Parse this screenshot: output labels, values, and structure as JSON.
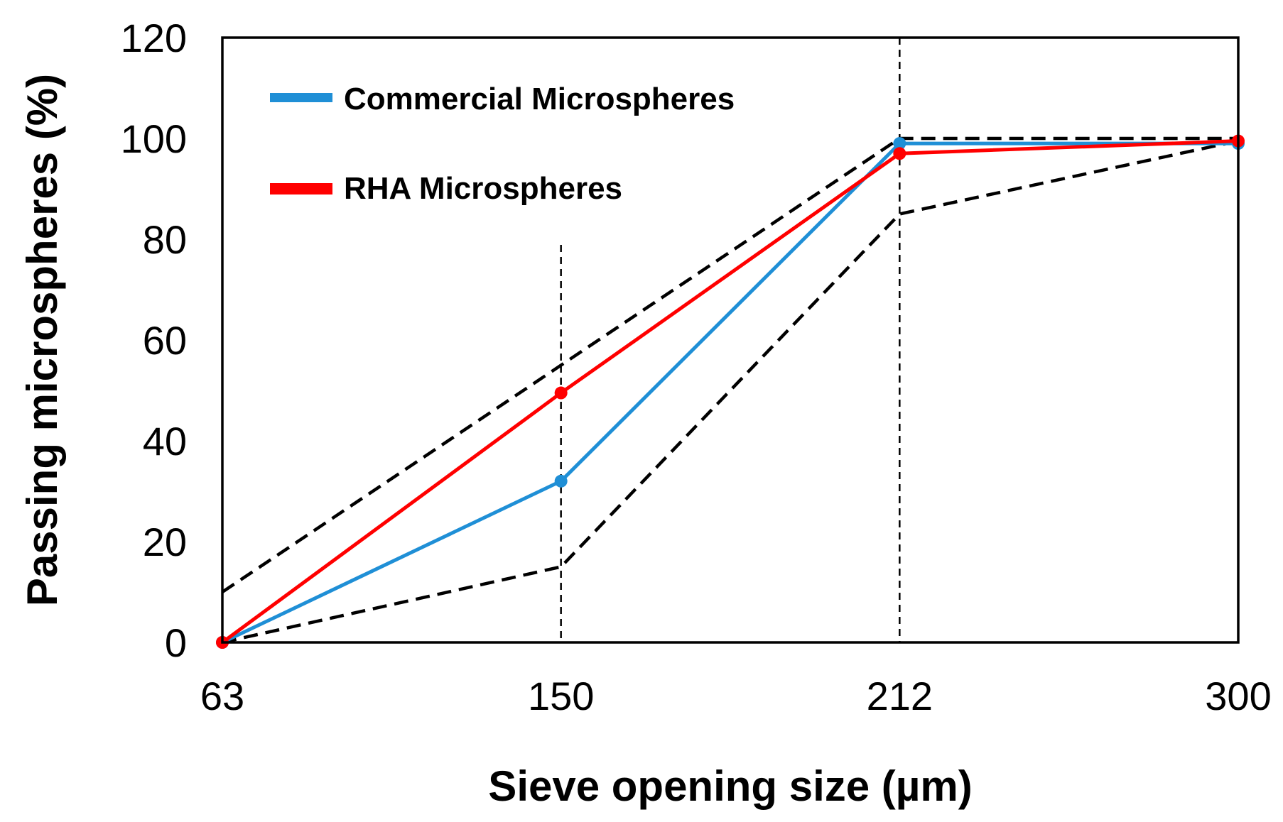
{
  "chart_data": {
    "type": "line",
    "title": "",
    "xlabel": "Sieve opening size (µm)",
    "ylabel": "Passing microspheres (%)",
    "categories": [
      "63",
      "150",
      "212",
      "300"
    ],
    "ylim": [
      0,
      120
    ],
    "yticks": [
      0,
      20,
      40,
      60,
      80,
      100,
      120
    ],
    "grid": false,
    "legend_position": "top-left",
    "series": [
      {
        "name": "Commercial Microspheres",
        "color": "#1f8fd6",
        "values": [
          0,
          32,
          99,
          99
        ]
      },
      {
        "name": "RHA Microspheres",
        "color": "#ff0000",
        "values": [
          0,
          49.5,
          97,
          99.5
        ]
      }
    ],
    "envelope": [
      {
        "name": "upper-limit",
        "color": "#000000",
        "values": [
          10,
          55,
          100,
          100
        ]
      },
      {
        "name": "lower-limit",
        "color": "#000000",
        "values": [
          0,
          15,
          85,
          99.5
        ]
      }
    ],
    "reference_lines_at": [
      "150",
      "212"
    ]
  }
}
